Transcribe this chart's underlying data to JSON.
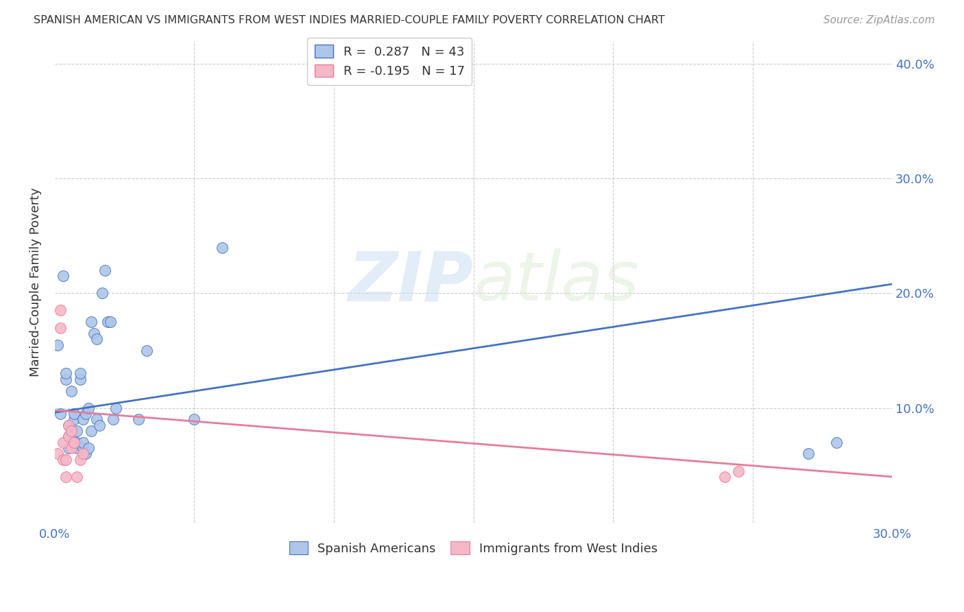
{
  "title": "SPANISH AMERICAN VS IMMIGRANTS FROM WEST INDIES MARRIED-COUPLE FAMILY POVERTY CORRELATION CHART",
  "source": "Source: ZipAtlas.com",
  "ylabel": "Married-Couple Family Poverty",
  "blue_R": 0.287,
  "blue_N": 43,
  "pink_R": -0.195,
  "pink_N": 17,
  "blue_color": "#aec6e8",
  "pink_color": "#f4b8c8",
  "blue_line_color": "#4472c4",
  "pink_line_color": "#e87b9a",
  "legend_blue_label": "R =  0.287   N = 43",
  "legend_pink_label": "R = -0.195   N = 17",
  "blue_scatter_x": [
    0.001,
    0.002,
    0.003,
    0.004,
    0.004,
    0.005,
    0.005,
    0.005,
    0.006,
    0.006,
    0.007,
    0.007,
    0.007,
    0.008,
    0.008,
    0.008,
    0.009,
    0.009,
    0.01,
    0.01,
    0.01,
    0.011,
    0.011,
    0.012,
    0.012,
    0.013,
    0.013,
    0.014,
    0.015,
    0.015,
    0.016,
    0.017,
    0.018,
    0.019,
    0.02,
    0.021,
    0.022,
    0.03,
    0.033,
    0.05,
    0.06,
    0.27,
    0.28
  ],
  "blue_scatter_y": [
    0.155,
    0.095,
    0.215,
    0.125,
    0.13,
    0.085,
    0.065,
    0.075,
    0.08,
    0.115,
    0.09,
    0.095,
    0.07,
    0.065,
    0.07,
    0.08,
    0.125,
    0.13,
    0.065,
    0.07,
    0.09,
    0.095,
    0.06,
    0.1,
    0.065,
    0.175,
    0.08,
    0.165,
    0.16,
    0.09,
    0.085,
    0.2,
    0.22,
    0.175,
    0.175,
    0.09,
    0.1,
    0.09,
    0.15,
    0.09,
    0.24,
    0.06,
    0.07
  ],
  "pink_scatter_x": [
    0.001,
    0.002,
    0.002,
    0.003,
    0.003,
    0.004,
    0.004,
    0.005,
    0.005,
    0.006,
    0.006,
    0.007,
    0.008,
    0.009,
    0.01,
    0.24,
    0.245
  ],
  "pink_scatter_y": [
    0.06,
    0.17,
    0.185,
    0.055,
    0.07,
    0.04,
    0.055,
    0.075,
    0.085,
    0.08,
    0.065,
    0.07,
    0.04,
    0.055,
    0.06,
    0.04,
    0.045
  ],
  "blue_line_x0": 0.0,
  "blue_line_x1": 0.3,
  "blue_line_y0": 0.096,
  "blue_line_y1": 0.208,
  "pink_line_x0": 0.0,
  "pink_line_x1": 0.3,
  "pink_line_y0": 0.098,
  "pink_line_y1": 0.04,
  "watermark_zip": "ZIP",
  "watermark_atlas": "atlas",
  "background_color": "#ffffff",
  "grid_color": "#cccccc",
  "xlim": [
    0.0,
    0.3
  ],
  "ylim": [
    0.0,
    0.42
  ],
  "ytick_vals": [
    0.0,
    0.1,
    0.2,
    0.3,
    0.4
  ],
  "ytick_labels": [
    "",
    "10.0%",
    "20.0%",
    "30.0%",
    "40.0%"
  ],
  "bottom_legend_labels": [
    "Spanish Americans",
    "Immigrants from West Indies"
  ]
}
